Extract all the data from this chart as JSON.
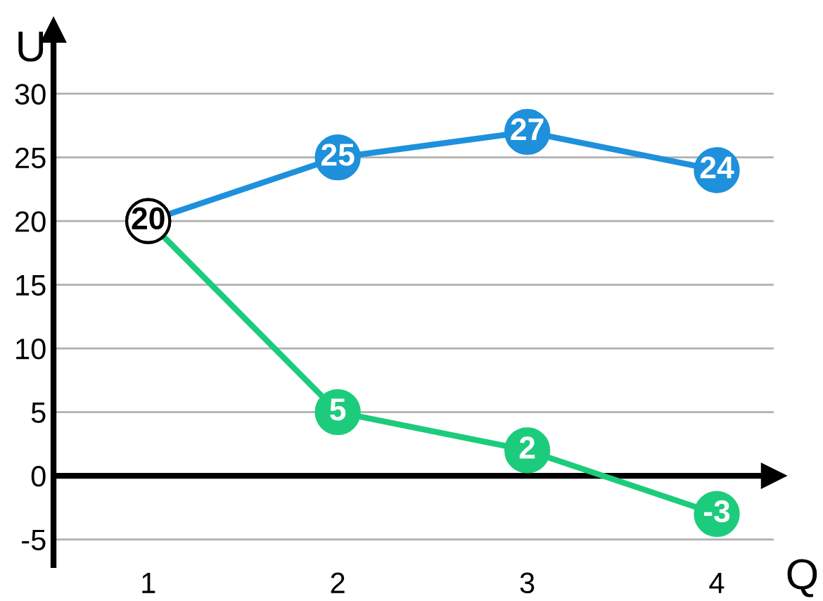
{
  "chart_data": {
    "type": "line",
    "xlabel": "Q",
    "ylabel": "U",
    "x": [
      1,
      2,
      3,
      4
    ],
    "series": [
      {
        "color": "#1e90dc",
        "colors": [
          "#ffffff",
          "#1e90dc",
          "#1e90dc",
          "#1e90dc"
        ],
        "values": [
          20,
          25,
          27,
          24
        ],
        "value_labels": [
          "20",
          "25",
          "27",
          "24"
        ]
      },
      {
        "color": "#1ccc7c",
        "colors": [
          "#ffffff",
          "#1ccc7c",
          "#1ccc7c",
          "#1ccc7c"
        ],
        "values": [
          20,
          5,
          2,
          -3
        ],
        "value_labels": [
          null,
          "5",
          "2",
          "-3"
        ]
      }
    ],
    "xlim": [
      0.5,
      4.3
    ],
    "xticks": [
      1,
      2,
      3,
      4
    ],
    "ylim": [
      -7,
      35
    ],
    "yticks": [
      -5,
      0,
      5,
      10,
      15,
      20,
      25,
      30
    ],
    "ref_lines": [
      {
        "axis": "y",
        "value": 0,
        "color": "#000000"
      }
    ],
    "grid": "y",
    "marker": "circle",
    "line_style": "solid",
    "legend": false
  }
}
